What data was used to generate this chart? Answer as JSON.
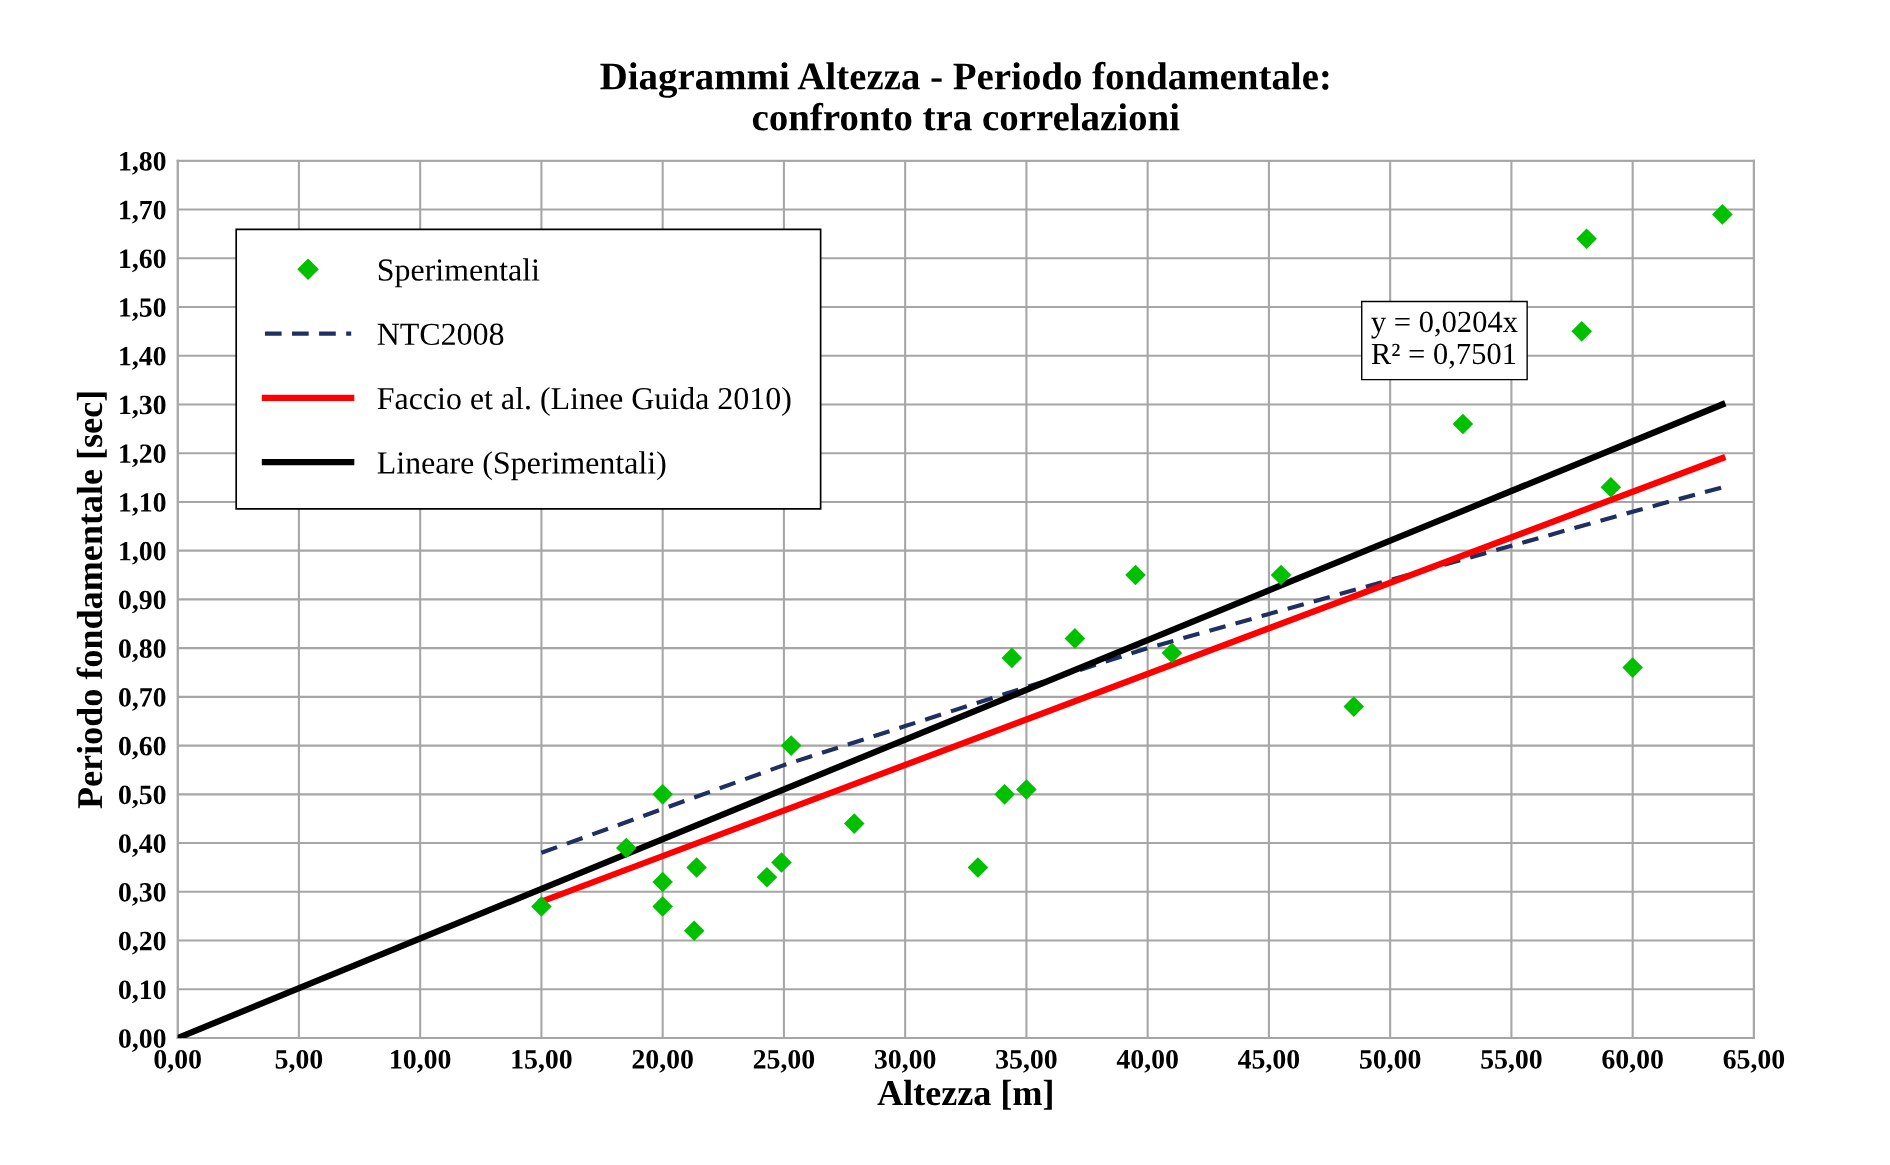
{
  "chart_data": {
    "type": "scatter",
    "title": "Diagrammi Altezza - Periodo fondamentale:\nconfronto tra correlazioni",
    "xlabel": "Altezza [m]",
    "ylabel": "Periodo fondamentale [sec]",
    "xlim": [
      0,
      65
    ],
    "ylim": [
      0,
      1.8
    ],
    "xticks": [
      {
        "value": 0,
        "label": "0,00"
      },
      {
        "value": 5,
        "label": "5,00"
      },
      {
        "value": 10,
        "label": "10,00"
      },
      {
        "value": 15,
        "label": "15,00"
      },
      {
        "value": 20,
        "label": "20,00"
      },
      {
        "value": 25,
        "label": "25,00"
      },
      {
        "value": 30,
        "label": "30,00"
      },
      {
        "value": 35,
        "label": "35,00"
      },
      {
        "value": 40,
        "label": "40,00"
      },
      {
        "value": 45,
        "label": "45,00"
      },
      {
        "value": 50,
        "label": "50,00"
      },
      {
        "value": 55,
        "label": "55,00"
      },
      {
        "value": 60,
        "label": "60,00"
      },
      {
        "value": 65,
        "label": "65,00"
      }
    ],
    "yticks": [
      {
        "value": 0,
        "label": "0,00"
      },
      {
        "value": 0.1,
        "label": "0,10"
      },
      {
        "value": 0.2,
        "label": "0,20"
      },
      {
        "value": 0.3,
        "label": "0,30"
      },
      {
        "value": 0.4,
        "label": "0,40"
      },
      {
        "value": 0.5,
        "label": "0,50"
      },
      {
        "value": 0.6,
        "label": "0,60"
      },
      {
        "value": 0.7,
        "label": "0,70"
      },
      {
        "value": 0.8,
        "label": "0,80"
      },
      {
        "value": 0.9,
        "label": "0,90"
      },
      {
        "value": 1.0,
        "label": "1,00"
      },
      {
        "value": 1.1,
        "label": "1,10"
      },
      {
        "value": 1.2,
        "label": "1,20"
      },
      {
        "value": 1.3,
        "label": "1,30"
      },
      {
        "value": 1.4,
        "label": "1,40"
      },
      {
        "value": 1.5,
        "label": "1,50"
      },
      {
        "value": 1.6,
        "label": "1,60"
      },
      {
        "value": 1.7,
        "label": "1,70"
      },
      {
        "value": 1.8,
        "label": "1,80"
      }
    ],
    "grid": true,
    "legend": "top left",
    "annotations": [
      "y = 0,0204x\nR² = 0,7501"
    ],
    "series": [
      {
        "name": "Sperimentali",
        "marker": "diamond",
        "color": "#00c000",
        "x": [
          15,
          18.5,
          20,
          20,
          20,
          21.3,
          21.4,
          24.3,
          24.9,
          25.3,
          27.9,
          33,
          34.1,
          34.4,
          35,
          37,
          39.5,
          41,
          45.5,
          48.5,
          53,
          57.9,
          58.1,
          59.1,
          60,
          63.7
        ],
        "values": [
          0.27,
          0.39,
          0.5,
          0.32,
          0.27,
          0.22,
          0.35,
          0.33,
          0.36,
          0.6,
          0.44,
          0.35,
          0.5,
          0.78,
          0.51,
          0.82,
          0.95,
          0.79,
          0.95,
          0.68,
          1.26,
          1.45,
          1.64,
          1.13,
          0.76,
          1.69
        ]
      },
      {
        "name": "NTC2008",
        "type": "line",
        "line_style": "dashed",
        "color": "#1f2f5f",
        "x": [
          15,
          20,
          25,
          30,
          35,
          40,
          45,
          50,
          55,
          60,
          63.7
        ],
        "values": [
          0.38,
          0.47,
          0.56,
          0.64,
          0.72,
          0.8,
          0.87,
          0.94,
          1.01,
          1.08,
          1.13
        ]
      },
      {
        "name": "Faccio et al. (Linee Guida 2010)",
        "type": "line",
        "line_style": "solid",
        "color": "#ff0000",
        "x": [
          15,
          63.7
        ],
        "values": [
          0.28,
          1.19
        ]
      },
      {
        "name": "Lineare (Sperimentali)",
        "type": "line",
        "line_style": "solid",
        "color": "#000000",
        "x": [
          0,
          63.7
        ],
        "values": [
          0,
          1.3
        ]
      }
    ]
  }
}
